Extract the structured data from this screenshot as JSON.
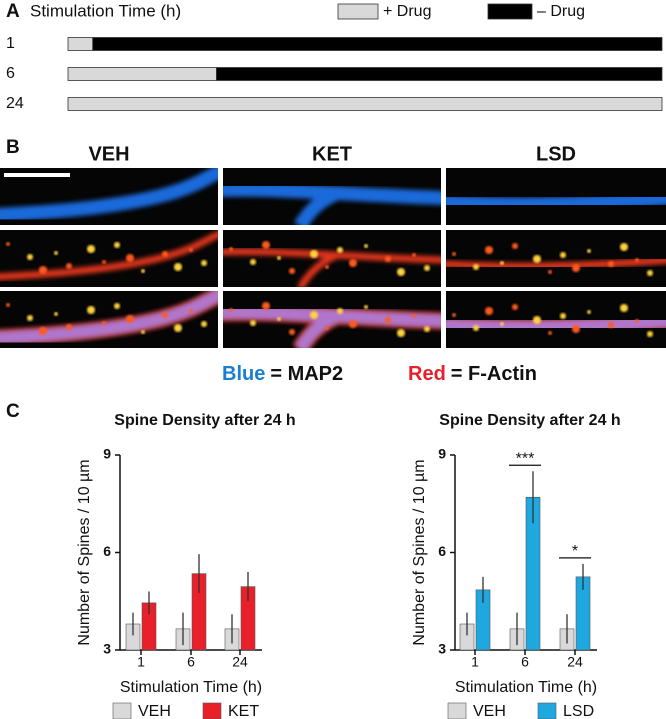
{
  "panel_labels": [
    "A",
    "B",
    "C"
  ],
  "chart_data": [
    {
      "type": "stacked_hbar",
      "title": "Stimulation Time (h)",
      "categories": [
        "1",
        "6",
        "24"
      ],
      "xlim": [
        0,
        24
      ],
      "series": [
        {
          "name": "+ Drug",
          "color": "#d9d9d9",
          "values": [
            1,
            6,
            24
          ]
        },
        {
          "name": "– Drug",
          "color": "#000000",
          "values": [
            23,
            18,
            0
          ]
        }
      ]
    },
    {
      "type": "bar",
      "title": "Spine Density after 24 h",
      "xlabel": "Stimulation Time (h)",
      "ylabel": "Number of Spines / 10 µm",
      "categories": [
        "1",
        "6",
        "24"
      ],
      "ylim": [
        3,
        9
      ],
      "yticks": [
        3,
        6,
        9
      ],
      "series": [
        {
          "name": "VEH",
          "color": "#d9d9d9",
          "values": [
            3.8,
            3.65,
            3.65
          ],
          "errors": [
            0.35,
            0.5,
            0.45
          ]
        },
        {
          "name": "KET",
          "color": "#e8202a",
          "values": [
            4.45,
            5.35,
            4.95
          ],
          "errors": [
            0.35,
            0.6,
            0.45
          ]
        }
      ],
      "annotations": []
    },
    {
      "type": "bar",
      "title": "Spine Density after 24 h",
      "xlabel": "Stimulation Time (h)",
      "ylabel": "Number of Spines / 10 µm",
      "categories": [
        "1",
        "6",
        "24"
      ],
      "ylim": [
        3,
        9
      ],
      "yticks": [
        3,
        6,
        9
      ],
      "series": [
        {
          "name": "VEH",
          "color": "#d9d9d9",
          "values": [
            3.8,
            3.65,
            3.65
          ],
          "errors": [
            0.35,
            0.5,
            0.45
          ]
        },
        {
          "name": "LSD",
          "color": "#1fa8e0",
          "values": [
            4.85,
            7.7,
            5.25
          ],
          "errors": [
            0.4,
            0.8,
            0.4
          ]
        }
      ],
      "annotations": [
        {
          "text": "***",
          "category": "6"
        },
        {
          "text": "*",
          "category": "24"
        }
      ]
    }
  ],
  "panel_b": {
    "columns": [
      "VEH",
      "KET",
      "LSD"
    ],
    "legend": [
      {
        "key": "Blue",
        "text": "= MAP2",
        "color": "#1a7fd1"
      },
      {
        "key": "Red",
        "text": "= F-Actin",
        "color": "#e8202a"
      }
    ]
  }
}
